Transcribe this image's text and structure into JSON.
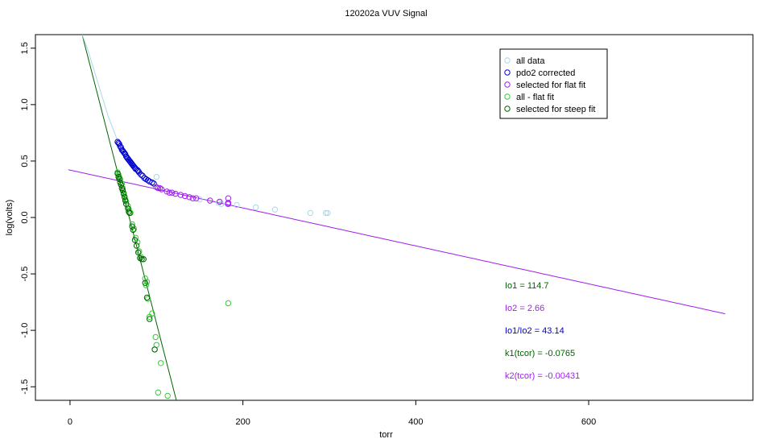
{
  "chart_data": {
    "type": "scatter",
    "title": "120202a   VUV Signal",
    "xlabel": "torr",
    "ylabel": "log(volts)",
    "xlim": [
      -40,
      790
    ],
    "ylim": [
      -1.62,
      1.62
    ],
    "xticks": [
      0,
      200,
      400,
      600
    ],
    "yticks": [
      -1.5,
      -1.0,
      -0.5,
      0.0,
      0.5,
      1.0,
      1.5
    ],
    "ytick_labels": [
      "-1.5",
      "-1.0",
      "-0.5",
      "0.0",
      "0.5",
      "1.0",
      "1.5"
    ],
    "grid": false,
    "legend_position": "top-right",
    "series": [
      {
        "name": "all data",
        "color": "#add8e6",
        "marker": "circle-open",
        "points": [
          [
            100,
            0.36
          ],
          [
            172,
            0.13
          ],
          [
            182,
            0.12
          ],
          [
            193,
            0.11
          ],
          [
            215,
            0.09
          ],
          [
            237,
            0.07
          ],
          [
            278,
            0.04
          ],
          [
            296,
            0.04
          ],
          [
            298,
            0.04
          ],
          [
            175,
            0.12
          ],
          [
            150,
            0.16
          ]
        ]
      },
      {
        "name": "pdo2 corrected",
        "color": "#0000cd",
        "marker": "circle-open",
        "points": [
          [
            55,
            0.67
          ],
          [
            56,
            0.66
          ],
          [
            57,
            0.65
          ],
          [
            58,
            0.63
          ],
          [
            59,
            0.62
          ],
          [
            60,
            0.6
          ],
          [
            61,
            0.59
          ],
          [
            62,
            0.58
          ],
          [
            63,
            0.57
          ],
          [
            64,
            0.56
          ],
          [
            65,
            0.54
          ],
          [
            66,
            0.53
          ],
          [
            67,
            0.52
          ],
          [
            68,
            0.51
          ],
          [
            69,
            0.5
          ],
          [
            70,
            0.49
          ],
          [
            71,
            0.48
          ],
          [
            72,
            0.47
          ],
          [
            73,
            0.46
          ],
          [
            74,
            0.45
          ],
          [
            75,
            0.44
          ],
          [
            76,
            0.43
          ],
          [
            78,
            0.42
          ],
          [
            79,
            0.41
          ],
          [
            80,
            0.4
          ],
          [
            82,
            0.38
          ],
          [
            84,
            0.37
          ],
          [
            86,
            0.35
          ],
          [
            88,
            0.34
          ],
          [
            90,
            0.33
          ],
          [
            92,
            0.32
          ],
          [
            95,
            0.31
          ],
          [
            97,
            0.3
          ]
        ]
      },
      {
        "name": "selected for flat fit",
        "color": "#a020f0",
        "marker": "circle-open",
        "points": [
          [
            100,
            0.27
          ],
          [
            102,
            0.26
          ],
          [
            104,
            0.26
          ],
          [
            106,
            0.25
          ],
          [
            112,
            0.23
          ],
          [
            115,
            0.22
          ],
          [
            118,
            0.22
          ],
          [
            122,
            0.21
          ],
          [
            128,
            0.2
          ],
          [
            133,
            0.19
          ],
          [
            138,
            0.18
          ],
          [
            142,
            0.17
          ],
          [
            146,
            0.17
          ],
          [
            162,
            0.15
          ],
          [
            173,
            0.14
          ],
          [
            183,
            0.17
          ],
          [
            183,
            0.13
          ],
          [
            183,
            0.12
          ]
        ]
      },
      {
        "name": "all - flat fit",
        "color": "#32cd32",
        "marker": "circle-open",
        "points": [
          [
            55,
            0.4
          ],
          [
            56,
            0.38
          ],
          [
            57,
            0.36
          ],
          [
            58,
            0.34
          ],
          [
            60,
            0.3
          ],
          [
            61,
            0.26
          ],
          [
            62,
            0.22
          ],
          [
            63,
            0.19
          ],
          [
            64,
            0.16
          ],
          [
            65,
            0.14
          ],
          [
            67,
            0.1
          ],
          [
            68,
            0.07
          ],
          [
            70,
            0.04
          ],
          [
            72,
            -0.06
          ],
          [
            74,
            -0.1
          ],
          [
            76,
            -0.18
          ],
          [
            78,
            -0.22
          ],
          [
            80,
            -0.3
          ],
          [
            82,
            -0.35
          ],
          [
            85,
            -0.37
          ],
          [
            87,
            -0.54
          ],
          [
            88,
            -0.6
          ],
          [
            89,
            -0.57
          ],
          [
            90,
            -0.72
          ],
          [
            92,
            -0.88
          ],
          [
            95,
            -0.85
          ],
          [
            98,
            -1.17
          ],
          [
            99,
            -1.06
          ],
          [
            100,
            -1.13
          ],
          [
            105,
            -1.29
          ],
          [
            102,
            -1.55
          ],
          [
            113,
            -1.58
          ],
          [
            183,
            -0.76
          ]
        ]
      },
      {
        "name": "selected for steep fit",
        "color": "#006400",
        "marker": "circle-open",
        "points": [
          [
            55,
            0.39
          ],
          [
            56,
            0.36
          ],
          [
            57,
            0.34
          ],
          [
            58,
            0.31
          ],
          [
            59,
            0.29
          ],
          [
            60,
            0.26
          ],
          [
            61,
            0.24
          ],
          [
            62,
            0.21
          ],
          [
            63,
            0.18
          ],
          [
            64,
            0.15
          ],
          [
            65,
            0.12
          ],
          [
            67,
            0.08
          ],
          [
            68,
            0.05
          ],
          [
            69,
            0.04
          ],
          [
            72,
            -0.08
          ],
          [
            73,
            -0.11
          ],
          [
            75,
            -0.2
          ],
          [
            77,
            -0.25
          ],
          [
            79,
            -0.31
          ],
          [
            81,
            -0.36
          ],
          [
            83,
            -0.37
          ],
          [
            85,
            -0.37
          ],
          [
            87,
            -0.58
          ],
          [
            89,
            -0.71
          ],
          [
            92,
            -0.9
          ],
          [
            98,
            -1.17
          ]
        ]
      }
    ],
    "lines": [
      {
        "name": "flat fit",
        "color": "#a020f0",
        "kind": "exp",
        "a": 0.42,
        "b": -0.00168,
        "x_start": -2,
        "x_end": 760
      },
      {
        "name": "steep fit",
        "color": "#006400",
        "kind": "linear",
        "x1": 14,
        "y1": 1.62,
        "x2": 123,
        "y2": -1.62
      },
      {
        "name": "all data curve",
        "color": "#add8e6",
        "kind": "points",
        "points": [
          [
            14,
            1.62
          ],
          [
            20,
            1.5
          ],
          [
            28,
            1.3
          ],
          [
            36,
            1.1
          ],
          [
            44,
            0.9
          ],
          [
            50,
            0.78
          ],
          [
            55,
            0.68
          ]
        ]
      }
    ],
    "annotations": [
      {
        "text": "Io1 =  114.7",
        "color": "#006400"
      },
      {
        "text": "Io2 =  2.66",
        "color": "#a020f0"
      },
      {
        "text": "Io1/Io2 =  43.14",
        "color": "#0000cd"
      },
      {
        "text": "k1(tcor) =  -0.0765",
        "color": "#006400"
      },
      {
        "text": "k2(tcor) =  -0.00431",
        "color": "#a020f0"
      }
    ]
  }
}
